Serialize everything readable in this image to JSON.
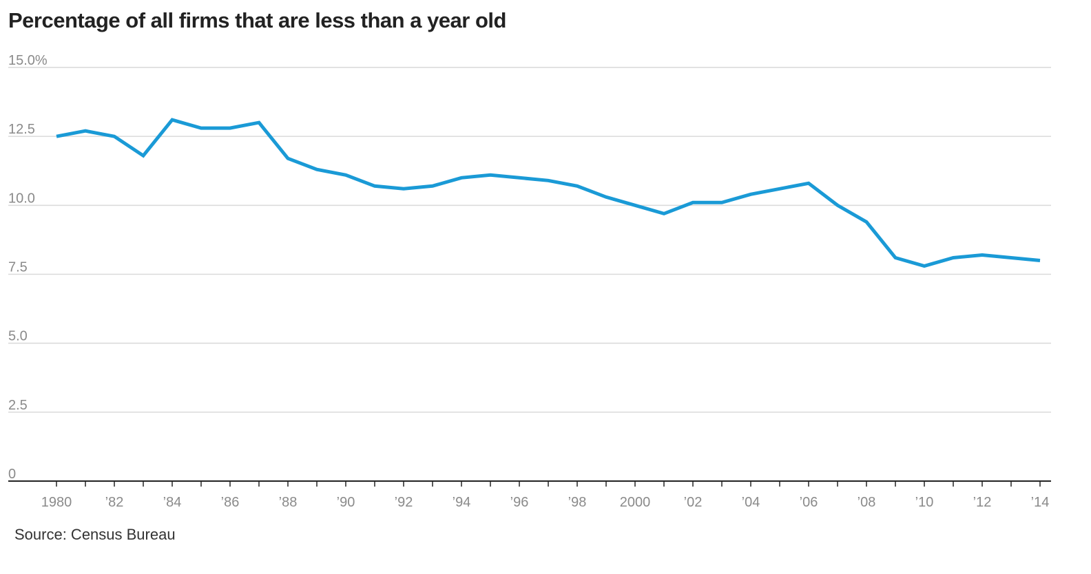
{
  "chart_data": {
    "type": "line",
    "title": "Percentage of all firms that are less than a year old",
    "source": "Source: Census Bureau",
    "xlabel": "",
    "ylabel": "",
    "ylim": [
      0,
      15
    ],
    "xlim": [
      1980,
      2014
    ],
    "grid": true,
    "y_ticks": [
      {
        "value": 0,
        "label": "0"
      },
      {
        "value": 2.5,
        "label": "2.5"
      },
      {
        "value": 5,
        "label": "5.0"
      },
      {
        "value": 7.5,
        "label": "7.5"
      },
      {
        "value": 10,
        "label": "10.0"
      },
      {
        "value": 12.5,
        "label": "12.5"
      },
      {
        "value": 15,
        "label": "15.0%"
      }
    ],
    "x_ticks": [
      {
        "value": 1980,
        "label": "1980"
      },
      {
        "value": 1982,
        "label": "’82"
      },
      {
        "value": 1984,
        "label": "’84"
      },
      {
        "value": 1986,
        "label": "’86"
      },
      {
        "value": 1988,
        "label": "’88"
      },
      {
        "value": 1990,
        "label": "’90"
      },
      {
        "value": 1992,
        "label": "’92"
      },
      {
        "value": 1994,
        "label": "’94"
      },
      {
        "value": 1996,
        "label": "’96"
      },
      {
        "value": 1998,
        "label": "’98"
      },
      {
        "value": 2000,
        "label": "2000"
      },
      {
        "value": 2002,
        "label": "’02"
      },
      {
        "value": 2004,
        "label": "’04"
      },
      {
        "value": 2006,
        "label": "’06"
      },
      {
        "value": 2008,
        "label": "’08"
      },
      {
        "value": 2010,
        "label": "’10"
      },
      {
        "value": 2012,
        "label": "’12"
      },
      {
        "value": 2014,
        "label": "’14"
      }
    ],
    "series": [
      {
        "color": "#1a9ad6",
        "x": [
          1980,
          1981,
          1982,
          1983,
          1984,
          1985,
          1986,
          1987,
          1988,
          1989,
          1990,
          1991,
          1992,
          1993,
          1994,
          1995,
          1996,
          1997,
          1998,
          1999,
          2000,
          2001,
          2002,
          2003,
          2004,
          2005,
          2006,
          2007,
          2008,
          2009,
          2010,
          2011,
          2012,
          2013,
          2014
        ],
        "values": [
          12.5,
          12.7,
          12.5,
          11.8,
          13.1,
          12.8,
          12.8,
          13.0,
          11.7,
          11.3,
          11.1,
          10.7,
          10.6,
          10.7,
          11.0,
          11.1,
          11.0,
          10.9,
          10.7,
          10.3,
          10.0,
          9.7,
          10.1,
          10.1,
          10.4,
          10.6,
          10.8,
          10.0,
          9.4,
          8.1,
          7.8,
          8.1,
          8.2,
          8.1,
          8.0
        ]
      }
    ]
  }
}
